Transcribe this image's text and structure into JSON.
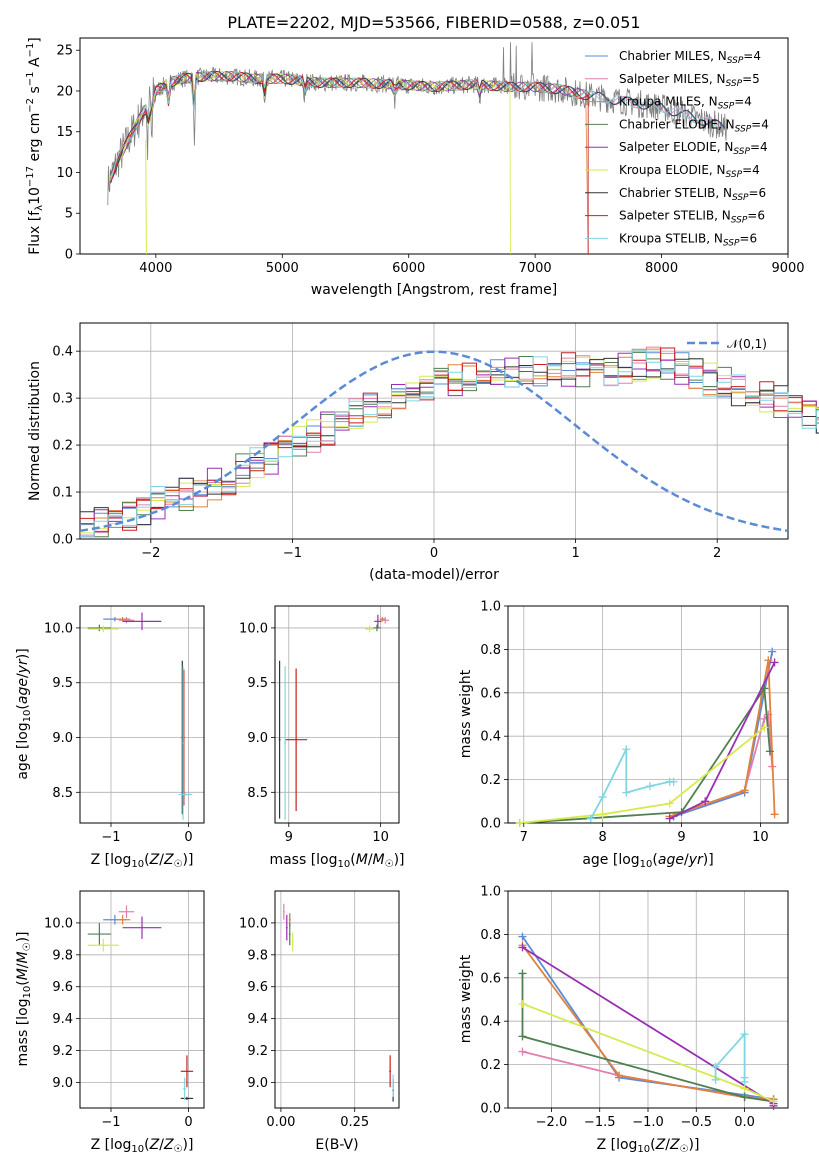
{
  "figure": {
    "title": "PLATE=2202, MJD=53566, FIBERID=0588, z=0.051"
  },
  "chart_data": [
    {
      "id": "spectrum",
      "type": "line",
      "xlabel": "wavelength [Angstrom, rest frame]",
      "ylabel": "Flux [f_λ 10^-17 erg cm^-2 s^-1 A^-1]",
      "xlim": [
        3400,
        9000
      ],
      "ylim": [
        0,
        26.5
      ],
      "xticks": [
        4000,
        5000,
        6000,
        7000,
        8000,
        9000
      ],
      "yticks": [
        0,
        5,
        10,
        15,
        20,
        25
      ],
      "legend_position": "top-right",
      "grid": false,
      "series": [
        {
          "name": "Chabrier MILES, N_SSP=4",
          "color": "#5b8bd6"
        },
        {
          "name": "Salpeter MILES, N_SSP=5",
          "color": "#e27fb0"
        },
        {
          "name": "Kroupa MILES, N_SSP=4",
          "color": "#e0823d"
        },
        {
          "name": "Chabrier ELODIE, N_SSP=4",
          "color": "#4f7f52"
        },
        {
          "name": "Salpeter ELODIE, N_SSP=4",
          "color": "#9a2fb2"
        },
        {
          "name": "Kroupa ELODIE, N_SSP=4",
          "color": "#d6ea4e"
        },
        {
          "name": "Chabrier STELIB, N_SSP=6",
          "color": "#333333"
        },
        {
          "name": "Salpeter STELIB, N_SSP=6",
          "color": "#c81e1e"
        },
        {
          "name": "Kroupa STELIB, N_SSP=6",
          "color": "#7fd6e0"
        }
      ],
      "data_continuum": {
        "x": [
          3620,
          3700,
          3800,
          3900,
          4000,
          4100,
          4200,
          4400,
          4600,
          4800,
          5000,
          5300,
          5600,
          5900,
          6200,
          6500,
          6800,
          7000,
          7200,
          7400,
          7600,
          7800,
          8000,
          8200,
          8500
        ],
        "y": [
          8.5,
          11.5,
          14.5,
          17.5,
          20.0,
          21.0,
          21.5,
          21.8,
          21.8,
          21.5,
          21.5,
          21.0,
          21.0,
          20.8,
          20.5,
          20.8,
          20.5,
          20.5,
          20.2,
          19.5,
          19.0,
          18.5,
          18.0,
          17.0,
          15.5
        ]
      }
    },
    {
      "id": "residuals",
      "type": "histogram",
      "xlabel": "(data-model)/error",
      "ylabel": "Normed distribution",
      "xlim": [
        -2.5,
        2.5
      ],
      "ylim": [
        0,
        0.46
      ],
      "xticks": [
        -2,
        -1,
        0,
        1,
        2
      ],
      "yticks": [
        0.0,
        0.1,
        0.2,
        0.3,
        0.4
      ],
      "grid": true,
      "legend_position": "top-right",
      "reference_curve": {
        "name": "𝒩(0,1)",
        "color": "#5b8bd6"
      },
      "bin_edges_start": -2.5,
      "bin_width": 0.1,
      "base_values": [
        0.025,
        0.035,
        0.045,
        0.055,
        0.065,
        0.075,
        0.085,
        0.095,
        0.105,
        0.115,
        0.13,
        0.145,
        0.16,
        0.175,
        0.19,
        0.205,
        0.22,
        0.235,
        0.25,
        0.265,
        0.28,
        0.295,
        0.305,
        0.315,
        0.325,
        0.33,
        0.335,
        0.34,
        0.345,
        0.35,
        0.352,
        0.354,
        0.356,
        0.358,
        0.36,
        0.36,
        0.36,
        0.36,
        0.362,
        0.37,
        0.375,
        0.37,
        0.36,
        0.35,
        0.34,
        0.33,
        0.32,
        0.31,
        0.3,
        0.29,
        0.28,
        0.27,
        0.26,
        0.25,
        0.24,
        0.23,
        0.22,
        0.21,
        0.2,
        0.19,
        0.18,
        0.17,
        0.16,
        0.15,
        0.14,
        0.13,
        0.12,
        0.11,
        0.1,
        0.09,
        0.08,
        0.07,
        0.065,
        0.06,
        0.055,
        0.05,
        0.045,
        0.04,
        0.035,
        0.03
      ]
    },
    {
      "id": "age_vs_Z",
      "type": "errorbar",
      "xlabel": "Z [log10(Z/Z☉)]",
      "ylabel": "age  [log10(age/yr)]",
      "xlim": [
        -1.4,
        0.2
      ],
      "ylim": [
        8.22,
        10.2
      ],
      "xticks": [
        -1,
        0
      ],
      "yticks": [
        8.5,
        9.0,
        9.5,
        10.0
      ],
      "grid": true,
      "points": [
        {
          "s": 0,
          "x": -0.95,
          "y": 10.08,
          "xe": 0.15,
          "ye": 0.02
        },
        {
          "s": 1,
          "x": -0.8,
          "y": 10.07,
          "xe": 0.1,
          "ye": 0.03
        },
        {
          "s": 2,
          "x": -0.85,
          "y": 10.08,
          "xe": 0.1,
          "ye": 0.02
        },
        {
          "s": 3,
          "x": -1.15,
          "y": 10.0,
          "xe": 0.15,
          "ye": 0.03
        },
        {
          "s": 4,
          "x": -0.6,
          "y": 10.06,
          "xe": 0.25,
          "ye": 0.08
        },
        {
          "s": 5,
          "x": -1.1,
          "y": 9.99,
          "xe": 0.2,
          "ye": 0.03
        },
        {
          "s": 6,
          "x": -0.08,
          "y": 9.0,
          "xe": 0.01,
          "ye": 0.7
        },
        {
          "s": 7,
          "x": -0.06,
          "y": 9.0,
          "xe": 0.01,
          "ye": 0.62
        },
        {
          "s": 8,
          "x": -0.04,
          "y": 8.48,
          "xe": 0.09,
          "ye": 0.01
        },
        {
          "s": 8,
          "x": -0.07,
          "y": 8.95,
          "xe": 0.01,
          "ye": 0.7
        }
      ]
    },
    {
      "id": "age_vs_mass",
      "type": "errorbar",
      "xlabel": "mass [log10(M/M☉)]",
      "ylabel": "",
      "xlim": [
        8.85,
        10.2
      ],
      "ylim": [
        8.22,
        10.2
      ],
      "xticks": [
        9,
        10
      ],
      "yticks": [
        8.5,
        9.0,
        9.5,
        10.0
      ],
      "grid": true,
      "points": [
        {
          "s": 0,
          "x": 10.02,
          "y": 10.08,
          "xe": 0.03,
          "ye": 0.02
        },
        {
          "s": 1,
          "x": 10.05,
          "y": 10.07,
          "xe": 0.04,
          "ye": 0.03
        },
        {
          "s": 2,
          "x": 10.02,
          "y": 10.08,
          "xe": 0.03,
          "ye": 0.02
        },
        {
          "s": 3,
          "x": 9.96,
          "y": 10.0,
          "xe": 0.04,
          "ye": 0.03
        },
        {
          "s": 4,
          "x": 9.97,
          "y": 10.06,
          "xe": 0.04,
          "ye": 0.06
        },
        {
          "s": 5,
          "x": 9.88,
          "y": 9.99,
          "xe": 0.05,
          "ye": 0.03
        },
        {
          "s": 6,
          "x": 8.9,
          "y": 8.98,
          "xe": 0.01,
          "ye": 0.72
        },
        {
          "s": 7,
          "x": 9.08,
          "y": 8.98,
          "xe": 0.12,
          "ye": 0.65
        },
        {
          "s": 8,
          "x": 8.96,
          "y": 8.95,
          "xe": 0.01,
          "ye": 0.7
        }
      ]
    },
    {
      "id": "weight_vs_age",
      "type": "line",
      "xlabel": "age  [log10(age/yr)]",
      "ylabel": "mass weight",
      "xlim": [
        6.8,
        10.35
      ],
      "ylim": [
        0,
        1.0
      ],
      "xticks": [
        7,
        8,
        9,
        10
      ],
      "yticks": [
        0.0,
        0.2,
        0.4,
        0.6,
        0.8,
        1.0
      ],
      "grid": true,
      "series": [
        {
          "s": 0,
          "x": [
            8.9,
            9.8,
            10.15
          ],
          "y": [
            0.03,
            0.14,
            0.79
          ]
        },
        {
          "s": 1,
          "x": [
            8.85,
            9.8,
            10.05,
            10.1,
            10.15
          ],
          "y": [
            0.03,
            0.15,
            0.48,
            0.5,
            0.26
          ]
        },
        {
          "s": 2,
          "x": [
            8.85,
            9.8,
            10.1,
            10.18
          ],
          "y": [
            0.03,
            0.15,
            0.75,
            0.04
          ]
        },
        {
          "s": 3,
          "x": [
            6.95,
            9.0,
            10.05,
            10.12
          ],
          "y": [
            0.0,
            0.05,
            0.62,
            0.33
          ]
        },
        {
          "s": 4,
          "x": [
            8.85,
            9.3,
            10.18
          ],
          "y": [
            0.02,
            0.1,
            0.74
          ]
        },
        {
          "s": 5,
          "x": [
            6.95,
            8.0,
            8.85,
            10.05
          ],
          "y": [
            0.0,
            0.04,
            0.09,
            0.44
          ]
        },
        {
          "s": 8,
          "x": [
            7.85,
            8.0,
            8.3,
            8.3,
            8.6,
            8.85,
            8.9
          ],
          "y": [
            0.02,
            0.12,
            0.34,
            0.14,
            0.17,
            0.19,
            0.19
          ]
        }
      ]
    },
    {
      "id": "mass_vs_Z",
      "type": "errorbar",
      "xlabel": "Z [log10(Z/Z☉)]",
      "ylabel": "mass [log10(M/M☉)]",
      "xlim": [
        -1.4,
        0.2
      ],
      "ylim": [
        8.84,
        10.2
      ],
      "xticks": [
        -1,
        0
      ],
      "yticks": [
        9.0,
        9.2,
        9.4,
        9.6,
        9.8,
        10.0
      ],
      "grid": true,
      "points": [
        {
          "s": 0,
          "x": -0.95,
          "y": 10.02,
          "xe": 0.15,
          "ye": 0.03
        },
        {
          "s": 1,
          "x": -0.8,
          "y": 10.07,
          "xe": 0.1,
          "ye": 0.04
        },
        {
          "s": 2,
          "x": -0.85,
          "y": 10.02,
          "xe": 0.1,
          "ye": 0.03
        },
        {
          "s": 3,
          "x": -1.15,
          "y": 9.93,
          "xe": 0.15,
          "ye": 0.07
        },
        {
          "s": 4,
          "x": -0.6,
          "y": 9.97,
          "xe": 0.25,
          "ye": 0.07
        },
        {
          "s": 5,
          "x": -1.1,
          "y": 9.86,
          "xe": 0.2,
          "ye": 0.04
        },
        {
          "s": 6,
          "x": -0.02,
          "y": 8.9,
          "xe": 0.08,
          "ye": 0.01
        },
        {
          "s": 7,
          "x": -0.02,
          "y": 9.07,
          "xe": 0.08,
          "ye": 0.1
        },
        {
          "s": 8,
          "x": -0.05,
          "y": 8.96,
          "xe": 0.02,
          "ye": 0.07
        }
      ]
    },
    {
      "id": "mass_vs_ebv",
      "type": "errorbar",
      "xlabel": "E(B-V)",
      "ylabel": "",
      "xlim": [
        -0.02,
        0.4
      ],
      "ylim": [
        8.84,
        10.2
      ],
      "xticks": [
        0.0,
        0.25
      ],
      "xtick_labels": [
        "0.00",
        "0.25"
      ],
      "yticks": [
        9.0,
        9.2,
        9.4,
        9.6,
        9.8,
        10.0
      ],
      "grid": true,
      "points": [
        {
          "s": 0,
          "x": 0.03,
          "y": 10.02,
          "xe": 0.003,
          "ye": 0.04
        },
        {
          "s": 1,
          "x": 0.01,
          "y": 10.07,
          "xe": 0.003,
          "ye": 0.05
        },
        {
          "s": 2,
          "x": 0.03,
          "y": 10.02,
          "xe": 0.003,
          "ye": 0.04
        },
        {
          "s": 3,
          "x": 0.03,
          "y": 9.93,
          "xe": 0.003,
          "ye": 0.07
        },
        {
          "s": 4,
          "x": 0.02,
          "y": 9.97,
          "xe": 0.003,
          "ye": 0.08
        },
        {
          "s": 5,
          "x": 0.04,
          "y": 9.88,
          "xe": 0.003,
          "ye": 0.06
        },
        {
          "s": 6,
          "x": 0.38,
          "y": 8.95,
          "xe": 0.003,
          "ye": 0.07
        },
        {
          "s": 7,
          "x": 0.37,
          "y": 9.07,
          "xe": 0.003,
          "ye": 0.1
        },
        {
          "s": 8,
          "x": 0.38,
          "y": 8.98,
          "xe": 0.003,
          "ye": 0.07
        }
      ]
    },
    {
      "id": "weight_vs_Z",
      "type": "line",
      "xlabel": "Z [log10(Z/Z☉)]",
      "ylabel": "mass weight",
      "xlim": [
        -2.45,
        0.45
      ],
      "ylim": [
        0,
        1.0
      ],
      "xticks": [
        -2.0,
        -1.5,
        -1.0,
        -0.5,
        0.0
      ],
      "xtick_labels": [
        "−2.0",
        "−1.5",
        "−1.0",
        "−0.5",
        "0.0"
      ],
      "yticks": [
        0.0,
        0.2,
        0.4,
        0.6,
        0.8,
        1.0
      ],
      "grid": true,
      "series": [
        {
          "s": 0,
          "x": [
            -2.3,
            -1.3,
            0.0,
            0.3
          ],
          "y": [
            0.79,
            0.14,
            0.06,
            0.04
          ]
        },
        {
          "s": 1,
          "x": [
            -2.3,
            -1.3,
            0.0,
            0.3
          ],
          "y": [
            0.26,
            0.15,
            0.05,
            0.04
          ]
        },
        {
          "s": 2,
          "x": [
            -2.3,
            -1.3,
            0.0,
            0.3
          ],
          "y": [
            0.75,
            0.15,
            0.05,
            0.04
          ]
        },
        {
          "s": 3,
          "x": [
            -2.3,
            -2.3,
            0.0,
            0.3
          ],
          "y": [
            0.62,
            0.33,
            0.05,
            0.03
          ]
        },
        {
          "s": 4,
          "x": [
            -2.3,
            0.3,
            0.3
          ],
          "y": [
            0.74,
            0.02,
            0.01
          ]
        },
        {
          "s": 5,
          "x": [
            -2.3,
            0.0,
            0.3
          ],
          "y": [
            0.48,
            0.09,
            0.03
          ]
        },
        {
          "s": 8,
          "x": [
            -0.3,
            -0.3,
            0.0,
            0.0,
            0.0
          ],
          "y": [
            0.13,
            0.19,
            0.34,
            0.14,
            0.12
          ]
        }
      ]
    }
  ]
}
